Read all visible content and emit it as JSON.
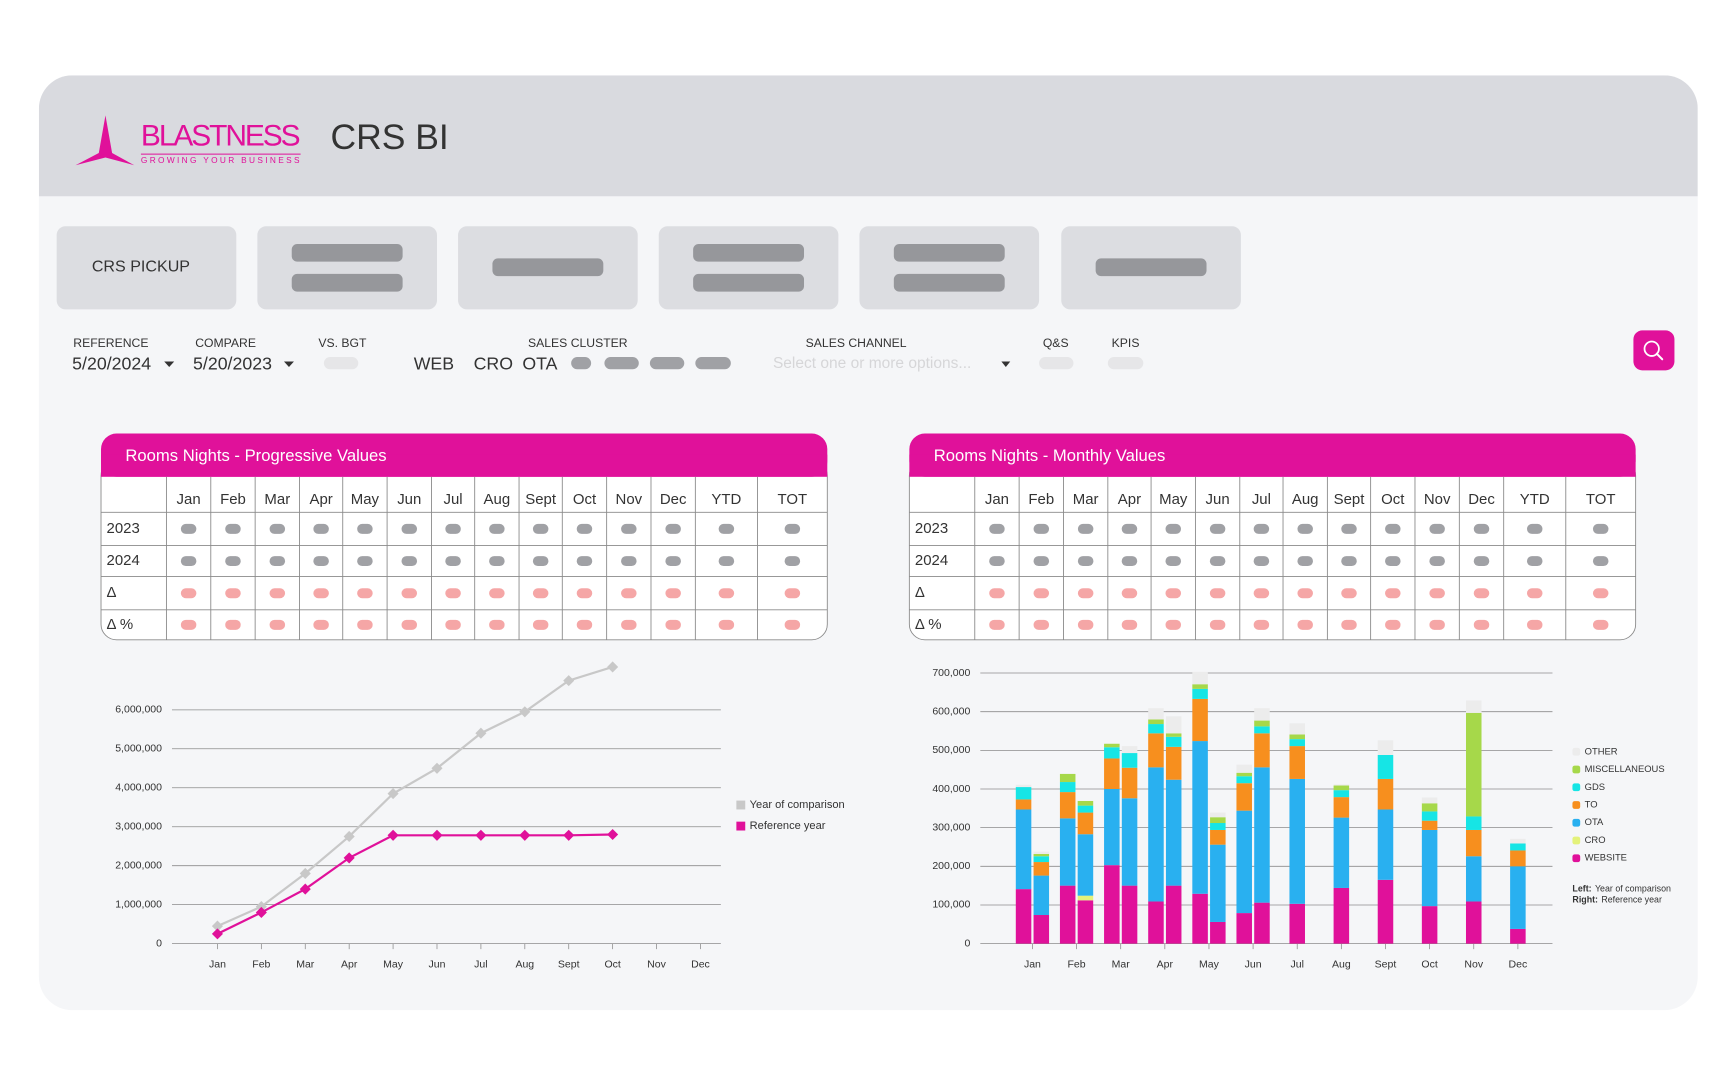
{
  "header": {
    "logo": "BLASTNESS",
    "tagline": "GROWING YOUR BUSINESS",
    "title": "CRS BI"
  },
  "tabs": [
    "CRS PICKUP"
  ],
  "filters": {
    "reference": {
      "label": "REFERENCE",
      "value": "5/20/2024"
    },
    "compare": {
      "label": "COMPARE",
      "value": "5/20/2023"
    },
    "vs_bgt": "VS. BGT",
    "sales_cluster": {
      "label": "SALES CLUSTER",
      "options": [
        "WEB",
        "CRO",
        "OTA"
      ]
    },
    "sales_channel": {
      "label": "SALES CHANNEL",
      "placeholder": "Select one or more options..."
    },
    "qs": "Q&S",
    "kpis": "KPIS"
  },
  "tables": [
    {
      "title": "Rooms Nights - Progressive Values",
      "columns": [
        "Jan",
        "Feb",
        "Mar",
        "Apr",
        "May",
        "Jun",
        "Jul",
        "Aug",
        "Sept",
        "Oct",
        "Nov",
        "Dec",
        "YTD",
        "TOT"
      ],
      "rows": [
        "2023",
        "2024",
        "Δ",
        "Δ %"
      ]
    },
    {
      "title": "Rooms Nights - Monthly Values",
      "columns": [
        "Jan",
        "Feb",
        "Mar",
        "Apr",
        "May",
        "Jun",
        "Jul",
        "Aug",
        "Sept",
        "Oct",
        "Nov",
        "Dec",
        "YTD",
        "TOT"
      ],
      "rows": [
        "2023",
        "2024",
        "Δ",
        "Δ %"
      ]
    }
  ],
  "chart_data": [
    {
      "type": "line",
      "categories": [
        "Jan",
        "Feb",
        "Mar",
        "Apr",
        "May",
        "Jun",
        "Jul",
        "Aug",
        "Sept",
        "Oct",
        "Nov",
        "Dec"
      ],
      "series": [
        {
          "name": "Year of comparison",
          "color": "#c8c8c8",
          "values": [
            450000,
            950000,
            1800000,
            2750000,
            3850000,
            4500000,
            5400000,
            5950000,
            6750000,
            7100000,
            null,
            null
          ]
        },
        {
          "name": "Reference year",
          "color": "#e0119a",
          "values": [
            250000,
            800000,
            1400000,
            2200000,
            2780000,
            2780000,
            2780000,
            2780000,
            2780000,
            2800000,
            null,
            null
          ]
        }
      ],
      "ylim": [
        0,
        7200000
      ],
      "yticks": [
        0,
        {
          "value": 1000000,
          "label": "1,000,000"
        },
        {
          "value": 2000000,
          "label": "2,000,000"
        },
        {
          "value": 3000000,
          "label": "3,000,000"
        },
        {
          "value": 4000000,
          "label": "4,000,000"
        },
        {
          "value": 5000000,
          "label": "5,000,000"
        },
        {
          "value": 6000000,
          "label": "6,000,000"
        }
      ],
      "grid": true,
      "legend": "right"
    },
    {
      "type": "stacked-bar",
      "categories": [
        "Jan",
        "Feb",
        "Mar",
        "Apr",
        "May",
        "Jun",
        "Jul",
        "Aug",
        "Sept",
        "Oct",
        "Nov",
        "Dec"
      ],
      "series": [
        {
          "name": "WEBSITE",
          "color": "#e0119a",
          "values": [
            141000,
            150000,
            203000,
            109000,
            129000,
            79000,
            103000,
            144000,
            165000,
            97000,
            109000,
            38000
          ],
          "reference_values": [
            74000,
            112000,
            150000,
            150000,
            56000,
            106000,
            null,
            null,
            null,
            null,
            null,
            null
          ]
        },
        {
          "name": "CRO",
          "color": "#e4f27a",
          "values": [
            0,
            0,
            0,
            0,
            0,
            0,
            0,
            0,
            0,
            0,
            0,
            0
          ],
          "reference_values": [
            0,
            12000,
            0,
            0,
            0,
            0,
            null,
            null,
            null,
            null,
            null,
            null
          ]
        },
        {
          "name": "OTA",
          "color": "#29b0f0",
          "values": [
            206000,
            174000,
            197000,
            347000,
            395000,
            265000,
            323000,
            182000,
            182000,
            197000,
            117000,
            162000
          ],
          "reference_values": [
            102000,
            159000,
            226000,
            274000,
            200000,
            350000,
            null,
            null,
            null,
            null,
            null,
            null
          ]
        },
        {
          "name": "TO",
          "color": "#f78f1e",
          "values": [
            26000,
            68000,
            79000,
            88000,
            109000,
            71000,
            85000,
            53000,
            79000,
            24000,
            68000,
            41000
          ],
          "reference_values": [
            35000,
            56000,
            79000,
            85000,
            38000,
            88000,
            null,
            null,
            null,
            null,
            null,
            null
          ]
        },
        {
          "name": "GDS",
          "color": "#16e5e5",
          "values": [
            32000,
            26000,
            29000,
            24000,
            26000,
            18000,
            18000,
            18000,
            62000,
            24000,
            35000,
            18000
          ],
          "reference_values": [
            15000,
            18000,
            38000,
            26000,
            18000,
            18000,
            null,
            null,
            null,
            null,
            null,
            null
          ]
        },
        {
          "name": "MISCELLANEOUS",
          "color": "#a6d84a",
          "values": [
            0,
            21000,
            9000,
            12000,
            12000,
            9000,
            12000,
            12000,
            0,
            21000,
            268000,
            0
          ],
          "reference_values": [
            6000,
            12000,
            0,
            9000,
            15000,
            15000,
            null,
            null,
            null,
            null,
            null,
            null
          ]
        },
        {
          "name": "OTHER",
          "color": "#ececec",
          "values": [
            6000,
            0,
            0,
            29000,
            32000,
            21000,
            29000,
            3000,
            38000,
            15000,
            32000,
            12000
          ],
          "reference_values": [
            6000,
            0,
            18000,
            44000,
            12000,
            32000,
            null,
            null,
            null,
            null,
            null,
            null
          ]
        }
      ],
      "ylim": [
        0,
        720000
      ],
      "yticks": [
        0,
        {
          "value": 100000,
          "label": "100,000"
        },
        {
          "value": 200000,
          "label": "200,000"
        },
        {
          "value": 300000,
          "label": "300,000"
        },
        {
          "value": 400000,
          "label": "400,000"
        },
        {
          "value": 500000,
          "label": "500,000"
        },
        {
          "value": 600000,
          "label": "600,000"
        },
        {
          "value": 700000,
          "label": "700,000"
        }
      ],
      "grid": true,
      "legend": "right",
      "notes": [
        {
          "key": "Left:",
          "text": "Year of comparison"
        },
        {
          "key": "Right:",
          "text": "Reference year"
        }
      ]
    }
  ]
}
